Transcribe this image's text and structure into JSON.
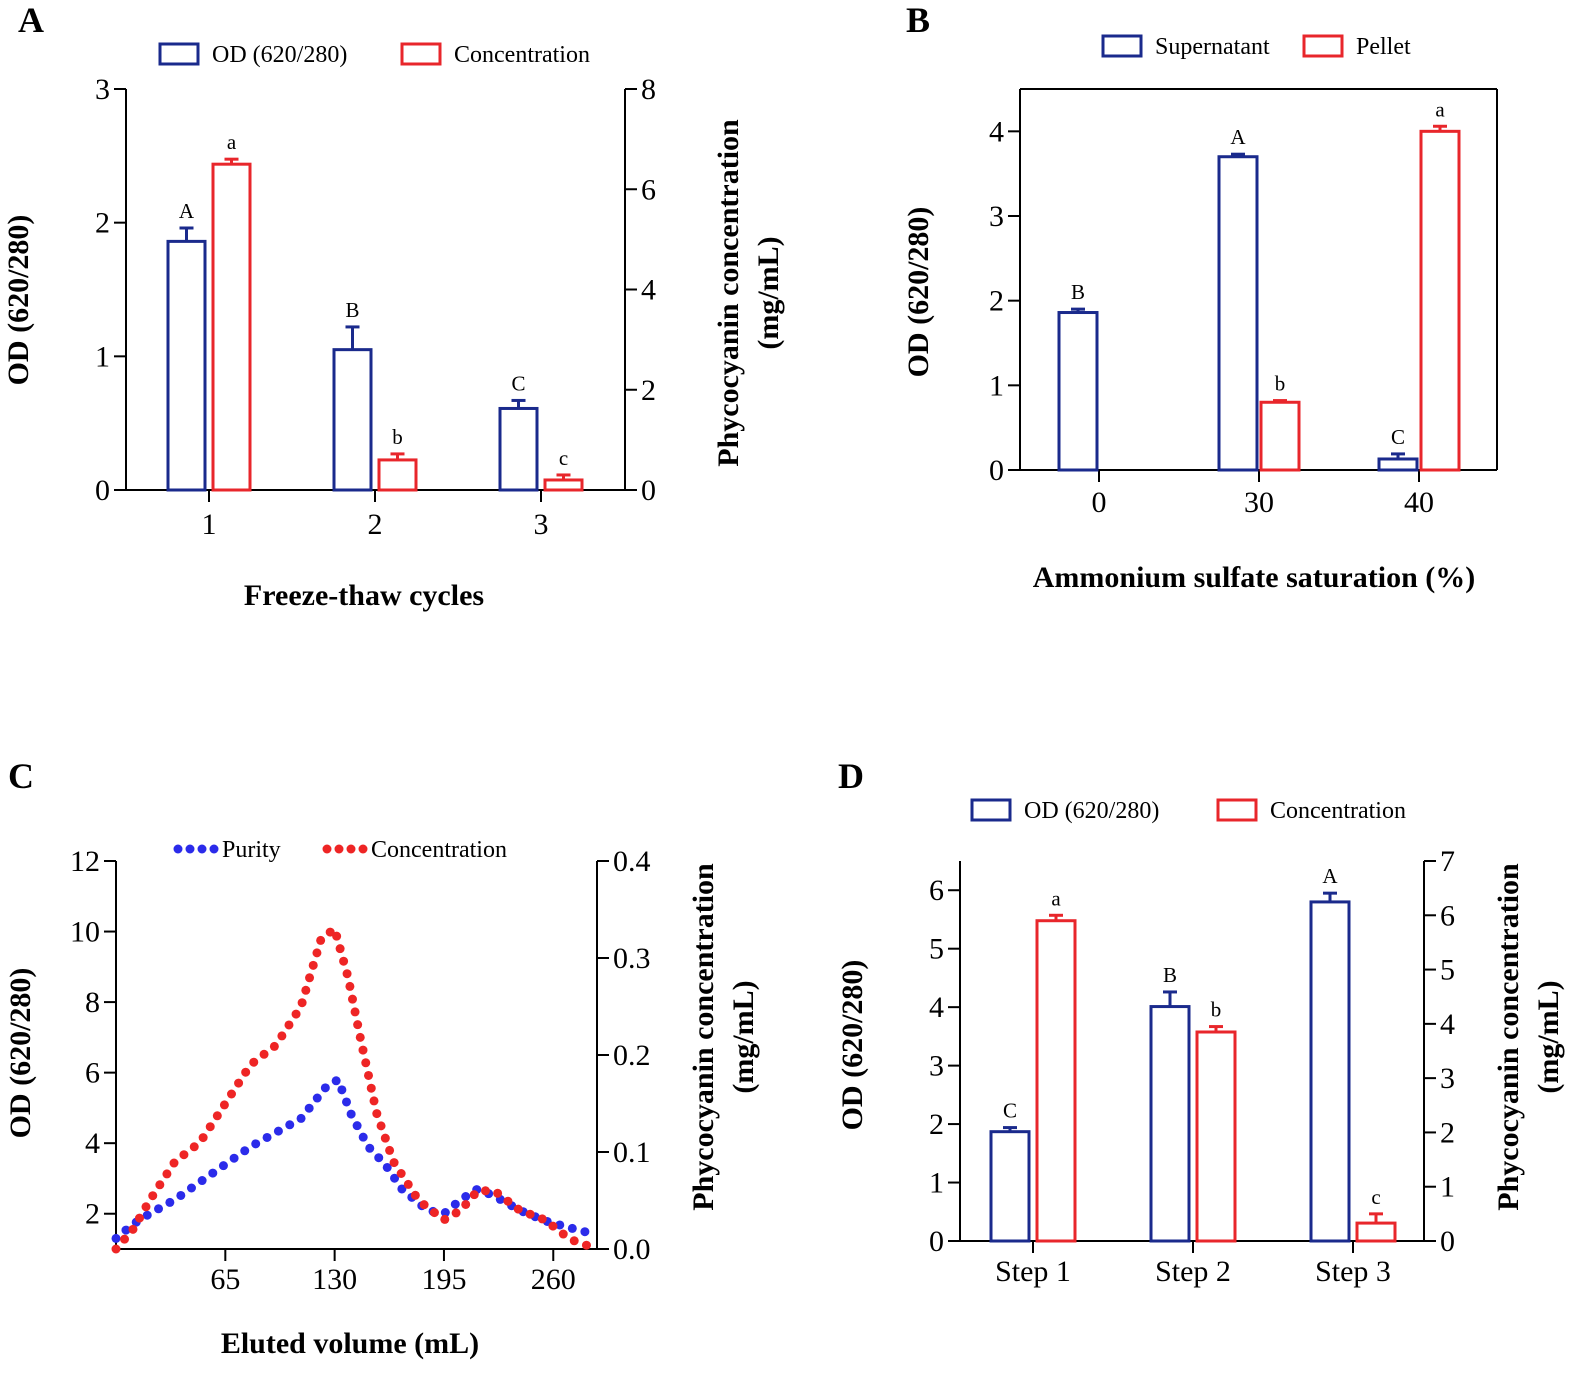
{
  "colors": {
    "blue": "#1a2a8c",
    "red": "#e8262b",
    "purity_dot": "#2b2bea",
    "conc_dot": "#ee2525"
  },
  "chart_data": [
    {
      "panel": "A",
      "type": "bar",
      "xlabel": "Freeze-thaw cycles",
      "ylabel": "OD (620/280)",
      "y2label_line1": "Phycocyanin concentration",
      "y2label_line2": "(mg/mL)",
      "categories": [
        "1",
        "2",
        "3"
      ],
      "ylim": [
        0,
        3
      ],
      "y_ticks": [
        "0",
        "1",
        "2",
        "3"
      ],
      "y2lim": [
        0,
        8
      ],
      "y2_ticks": [
        "0",
        "2",
        "4",
        "6",
        "8"
      ],
      "series": [
        {
          "name": "OD (620/280)",
          "axis": "left",
          "color": "#1a2a8c",
          "values": [
            1.86,
            1.05,
            0.61
          ],
          "errors": [
            0.1,
            0.17,
            0.06
          ],
          "labels": [
            "A",
            "B",
            "C"
          ]
        },
        {
          "name": "Concentration",
          "axis": "right",
          "color": "#e8262b",
          "values": [
            6.5,
            0.6,
            0.2
          ],
          "errors": [
            0.1,
            0.12,
            0.1
          ],
          "labels": [
            "a",
            "b",
            "c"
          ]
        }
      ]
    },
    {
      "panel": "B",
      "type": "bar",
      "xlabel": "Ammonium sulfate  saturation (%)",
      "ylabel": "OD (620/280)",
      "categories": [
        "0",
        "30",
        "40"
      ],
      "ylim": [
        0,
        4.5
      ],
      "y_ticks": [
        "0",
        "1",
        "2",
        "3",
        "4"
      ],
      "series": [
        {
          "name": "Supernatant",
          "color": "#1a2a8c",
          "values": [
            1.86,
            3.7,
            0.13
          ],
          "errors": [
            0.04,
            0.03,
            0.06
          ],
          "labels": [
            "B",
            "A",
            "C"
          ]
        },
        {
          "name": "Pellet",
          "color": "#e8262b",
          "values": [
            null,
            0.8,
            4.0
          ],
          "errors": [
            null,
            0.02,
            0.06
          ],
          "labels": [
            "",
            "b",
            "a"
          ]
        }
      ]
    },
    {
      "panel": "C",
      "type": "scatter",
      "xlabel": "Eluted volume (mL)",
      "ylabel": "OD (620/280)",
      "y2label_line1": "Phycocyanin concentration",
      "y2label_line2": "(mg/mL)",
      "xlim": [
        0,
        286
      ],
      "x_ticks": [
        "65",
        "130",
        "195",
        "260"
      ],
      "ylim": [
        1,
        12
      ],
      "y_ticks": [
        "2",
        "4",
        "6",
        "8",
        "10",
        "12"
      ],
      "y2lim": [
        0,
        0.4
      ],
      "y2_ticks": [
        "0.0",
        "0.1",
        "0.2",
        "0.3",
        "0.4"
      ],
      "series": [
        {
          "name": "Purity",
          "axis": "left",
          "color": "#2b2bea",
          "x": [
            0,
            10,
            20,
            35,
            50,
            65,
            80,
            95,
            110,
            125,
            132,
            140,
            150,
            160,
            170,
            185,
            195,
            205,
            215,
            225,
            240,
            255,
            270,
            286
          ],
          "values": [
            1.3,
            1.7,
            2.0,
            2.4,
            2.9,
            3.4,
            3.9,
            4.3,
            4.7,
            5.6,
            5.8,
            4.8,
            3.9,
            3.4,
            2.7,
            2.1,
            2.0,
            2.4,
            2.7,
            2.5,
            2.1,
            1.8,
            1.6,
            1.4
          ]
        },
        {
          "name": "Concentration",
          "axis": "right",
          "color": "#ee2525",
          "x": [
            0,
            10,
            20,
            35,
            50,
            65,
            80,
            95,
            110,
            122,
            130,
            138,
            145,
            155,
            165,
            180,
            195,
            205,
            215,
            225,
            240,
            255,
            270,
            286
          ],
          "values": [
            0.0,
            0.02,
            0.05,
            0.09,
            0.11,
            0.15,
            0.19,
            0.21,
            0.25,
            0.32,
            0.33,
            0.28,
            0.22,
            0.14,
            0.09,
            0.05,
            0.03,
            0.04,
            0.06,
            0.06,
            0.04,
            0.03,
            0.01,
            0.0
          ]
        }
      ]
    },
    {
      "panel": "D",
      "type": "bar",
      "xlabel": "",
      "ylabel": "OD (620/280)",
      "y2label_line1": "Phycocyanin concentration",
      "y2label_line2": "(mg/mL)",
      "categories": [
        "Step 1",
        "Step 2",
        "Step 3"
      ],
      "ylim": [
        0,
        6.5
      ],
      "y_ticks": [
        "0",
        "1",
        "2",
        "3",
        "4",
        "5",
        "6"
      ],
      "y2lim": [
        0,
        7
      ],
      "y2_ticks": [
        "0",
        "1",
        "2",
        "3",
        "4",
        "5",
        "6",
        "7"
      ],
      "series": [
        {
          "name": "OD (620/280)",
          "axis": "left",
          "color": "#1a2a8c",
          "values": [
            1.87,
            4.01,
            5.8
          ],
          "errors": [
            0.07,
            0.25,
            0.15
          ],
          "labels": [
            "C",
            "B",
            "A"
          ]
        },
        {
          "name": "Concentration",
          "axis": "right",
          "color": "#e8262b",
          "values": [
            5.9,
            3.85,
            0.33
          ],
          "errors": [
            0.1,
            0.1,
            0.17
          ],
          "labels": [
            "a",
            "b",
            "c"
          ]
        }
      ]
    }
  ]
}
